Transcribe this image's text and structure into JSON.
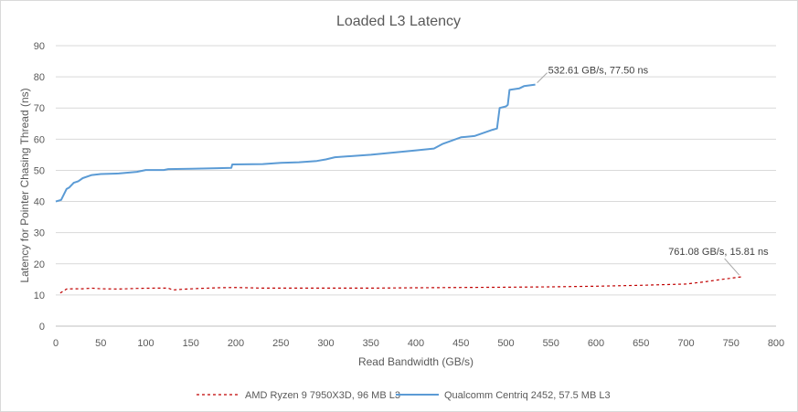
{
  "chart_data": {
    "type": "line",
    "title": "Loaded L3 Latency",
    "xlabel": "Read Bandwidth (GB/s)",
    "ylabel": "Latency for Pointer Chasing Thread (ns)",
    "xlim": [
      0,
      800
    ],
    "ylim": [
      0,
      90
    ],
    "xticks": [
      0,
      50,
      100,
      150,
      200,
      250,
      300,
      350,
      400,
      450,
      500,
      550,
      600,
      650,
      700,
      750,
      800
    ],
    "yticks": [
      0,
      10,
      20,
      30,
      40,
      50,
      60,
      70,
      80,
      90
    ],
    "grid": true,
    "legend_position": "bottom",
    "series": [
      {
        "name": "AMD Ryzen 9 7950X3D, 96 MB L3",
        "color": "#c00000",
        "style": "dashed",
        "x": [
          5,
          12,
          20,
          30,
          40,
          50,
          70,
          90,
          110,
          125,
          130,
          140,
          160,
          180,
          200,
          230,
          260,
          300,
          350,
          400,
          450,
          500,
          550,
          600,
          650,
          700,
          720,
          740,
          761.08
        ],
        "y": [
          10.6,
          11.9,
          12.0,
          12.0,
          12.2,
          12.0,
          11.9,
          12.1,
          12.2,
          12.2,
          11.6,
          11.8,
          12.1,
          12.3,
          12.4,
          12.2,
          12.2,
          12.2,
          12.2,
          12.3,
          12.4,
          12.5,
          12.6,
          12.8,
          13.1,
          13.5,
          14.2,
          15.0,
          15.81
        ]
      },
      {
        "name": "Qualcomm Centriq 2452, 57.5 MB L3",
        "color": "#5b9bd5",
        "style": "solid",
        "x": [
          0,
          6,
          12,
          15,
          20,
          25,
          30,
          40,
          50,
          70,
          90,
          100,
          120,
          125,
          150,
          180,
          195,
          196,
          230,
          250,
          270,
          290,
          300,
          310,
          350,
          400,
          420,
          430,
          450,
          465,
          485,
          490,
          493,
          500,
          502,
          504,
          515,
          520,
          532.61
        ],
        "y": [
          40.0,
          40.5,
          44.0,
          44.5,
          46.0,
          46.5,
          47.5,
          48.5,
          48.8,
          49.0,
          49.5,
          50.1,
          50.1,
          50.4,
          50.5,
          50.7,
          50.8,
          51.9,
          52.0,
          52.4,
          52.6,
          53.0,
          53.5,
          54.2,
          55.0,
          56.4,
          57.0,
          58.5,
          60.6,
          61.0,
          63.0,
          63.4,
          70.0,
          70.5,
          71.0,
          75.8,
          76.3,
          77.0,
          77.5
        ]
      }
    ],
    "annotations": [
      {
        "text": "532.61 GB/s, 77.50 ns"
      },
      {
        "text": "761.08 GB/s, 15.81 ns"
      }
    ]
  }
}
